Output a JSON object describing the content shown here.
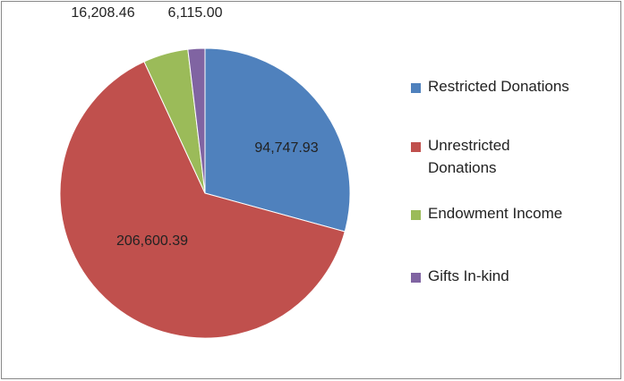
{
  "chart_data": {
    "type": "pie",
    "categories": [
      "Restricted Donations",
      "Unrestricted Donations",
      "Endowment Income",
      "Gifts In-kind"
    ],
    "values": [
      94747.93,
      206600.39,
      16208.46,
      6115.0
    ],
    "value_labels": [
      "94,747.93",
      "206,600.39",
      "16,208.46",
      "6,115.00"
    ],
    "colors": [
      "#4f81bd",
      "#c0504d",
      "#9bbb59",
      "#8064a2"
    ],
    "legend": "right"
  }
}
